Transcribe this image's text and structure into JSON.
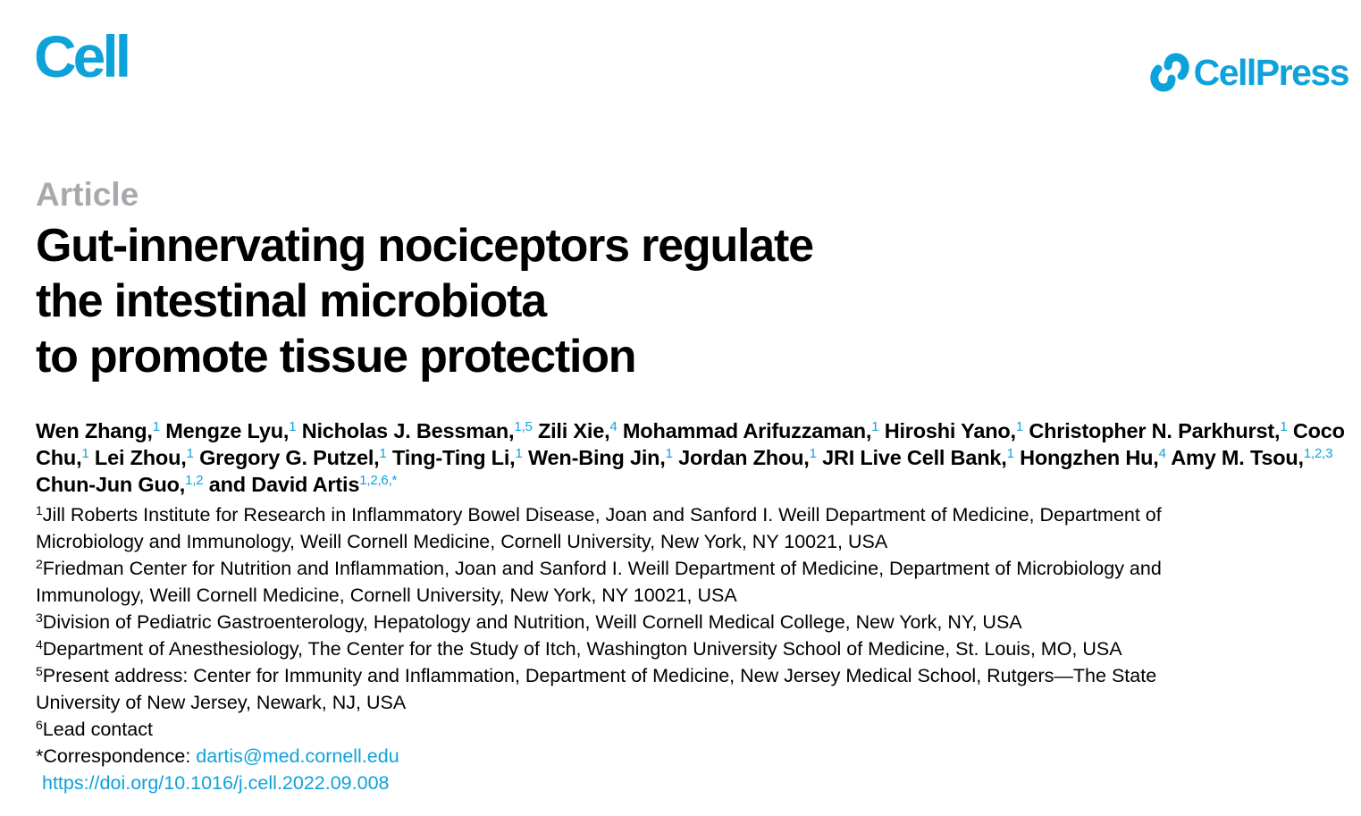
{
  "header": {
    "journal": "Cell",
    "publisher": "CellPress"
  },
  "article": {
    "type": "Article",
    "title_lines": [
      "Gut-innervating nociceptors regulate",
      "the intestinal microbiota",
      "to promote tissue protection"
    ]
  },
  "authors": [
    {
      "name": "Wen Zhang,",
      "sup": "1"
    },
    {
      "name": "Mengze Lyu,",
      "sup": "1"
    },
    {
      "name": "Nicholas J. Bessman,",
      "sup": "1,5"
    },
    {
      "name": "Zili Xie,",
      "sup": "4"
    },
    {
      "name": "Mohammad Arifuzzaman,",
      "sup": "1"
    },
    {
      "name": "Hiroshi Yano,",
      "sup": "1"
    },
    {
      "name": "Christopher N. Parkhurst,",
      "sup": "1"
    },
    {
      "name": "Coco Chu,",
      "sup": "1"
    },
    {
      "name": "Lei Zhou,",
      "sup": "1"
    },
    {
      "name": "Gregory G. Putzel,",
      "sup": "1"
    },
    {
      "name": "Ting-Ting Li,",
      "sup": "1"
    },
    {
      "name": "Wen-Bing Jin,",
      "sup": "1"
    },
    {
      "name": "Jordan Zhou,",
      "sup": "1"
    },
    {
      "name": "JRI Live Cell Bank,",
      "sup": "1"
    },
    {
      "name": "Hongzhen Hu,",
      "sup": "4"
    },
    {
      "name": "Amy M. Tsou,",
      "sup": "1,2,3"
    },
    {
      "name": "Chun-Jun Guo,",
      "sup": "1,2"
    },
    {
      "name": "and David Artis",
      "sup": "1,2,6,*"
    }
  ],
  "affiliations": {
    "a1": {
      "sup": "1",
      "line1": "Jill Roberts Institute for Research in Inflammatory Bowel Disease, Joan and Sanford I. Weill Department of Medicine, Department of",
      "line2": "Microbiology and Immunology, Weill Cornell Medicine, Cornell University, New York, NY 10021, USA"
    },
    "a2": {
      "sup": "2",
      "line1": "Friedman Center for Nutrition and Inflammation, Joan and Sanford I. Weill Department of Medicine, Department of Microbiology and",
      "line2": "Immunology, Weill Cornell Medicine, Cornell University, New York, NY 10021, USA"
    },
    "a3": {
      "sup": "3",
      "line1": "Division of Pediatric Gastroenterology, Hepatology and Nutrition, Weill Cornell Medical College, New York, NY, USA"
    },
    "a4": {
      "sup": "4",
      "line1": "Department of Anesthesiology, The Center for the Study of Itch, Washington University School of Medicine, St. Louis, MO, USA"
    },
    "a5": {
      "sup": "5",
      "line1": "Present address: Center for Immunity and Inflammation, Department of Medicine, New Jersey Medical School, Rutgers—The State",
      "line2": "University of New Jersey, Newark, NJ, USA"
    },
    "a6": {
      "sup": "6",
      "line1": "Lead contact"
    }
  },
  "correspondence": {
    "sup": "*",
    "label": "Correspondence: ",
    "email": "dartis@med.cornell.edu"
  },
  "doi": "https://doi.org/10.1016/j.cell.2022.09.008",
  "colors": {
    "accent": "#0ea2db",
    "article_type": "#a7a9ac",
    "text": "#000000"
  },
  "icons": {
    "publisher_logo": "linked-chain-icon"
  }
}
